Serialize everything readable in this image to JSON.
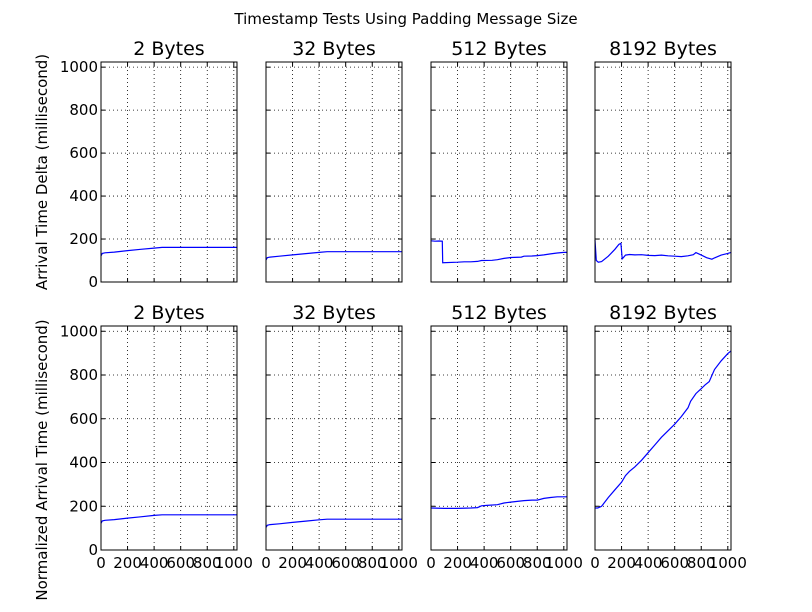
{
  "figure": {
    "title": "Timestamp Tests Using Padding Message Size"
  },
  "chart_data": {
    "type": "line",
    "xlim": [
      0,
      1024
    ],
    "ylim": [
      0,
      1024
    ],
    "x_ticks": [
      0,
      200,
      400,
      600,
      800,
      1000
    ],
    "y_ticks": [
      0,
      200,
      400,
      600,
      800,
      1000
    ],
    "grid": true,
    "series_color": "#0000ff",
    "rows": [
      {
        "ylabel": "Arrival Time Delta (millisecond)",
        "panels": [
          {
            "title": "2 Bytes",
            "x": [
              0,
              10,
              30,
              100,
              200,
              300,
              400,
              460,
              500,
              700,
              1024
            ],
            "y": [
              122,
              133,
              136,
              139,
              146,
              152,
              158,
              161,
              161,
              161,
              161
            ]
          },
          {
            "title": "32 Bytes",
            "x": [
              0,
              10,
              30,
              100,
              200,
              300,
              400,
              460,
              500,
              700,
              1024
            ],
            "y": [
              103,
              113,
              116,
              120,
              126,
              132,
              138,
              141,
              141,
              141,
              141
            ]
          },
          {
            "title": "512 Bytes",
            "x": [
              0,
              30,
              60,
              85,
              88,
              200,
              250,
              300,
              350,
              380,
              460,
              500,
              550,
              600,
              680,
              700,
              760,
              800,
              850,
              900,
              950,
              1000,
              1024
            ],
            "y": [
              192,
              190,
              191,
              190,
              90,
              92,
              94,
              94,
              96,
              100,
              101,
              104,
              110,
              114,
              116,
              120,
              121,
              123,
              126,
              131,
              135,
              138,
              138
            ]
          },
          {
            "title": "8192 Bytes",
            "x": [
              0,
              10,
              25,
              50,
              100,
              150,
              180,
              195,
              205,
              215,
              230,
              260,
              300,
              350,
              400,
              450,
              500,
              550,
              600,
              650,
              700,
              740,
              760,
              800,
              840,
              880,
              900,
              950,
              1000,
              1024
            ],
            "y": [
              195,
              100,
              92,
              95,
              120,
              152,
              175,
              180,
              108,
              115,
              125,
              128,
              126,
              127,
              124,
              123,
              125,
              122,
              120,
              118,
              122,
              127,
              137,
              125,
              113,
              106,
              112,
              125,
              133,
              138
            ]
          }
        ]
      },
      {
        "ylabel": "Normalized Arrival Time (millisecond)",
        "panels": [
          {
            "title": "2 Bytes",
            "x": [
              0,
              10,
              30,
              100,
              200,
              300,
              400,
              460,
              500,
              700,
              1024
            ],
            "y": [
              122,
              133,
              136,
              139,
              146,
              152,
              158,
              161,
              161,
              161,
              161
            ]
          },
          {
            "title": "32 Bytes",
            "x": [
              0,
              10,
              30,
              100,
              200,
              300,
              400,
              460,
              500,
              700,
              1024
            ],
            "y": [
              103,
              113,
              116,
              120,
              126,
              132,
              138,
              141,
              141,
              141,
              141
            ]
          },
          {
            "title": "512 Bytes",
            "x": [
              0,
              100,
              200,
              300,
              350,
              380,
              420,
              500,
              550,
              600,
              650,
              700,
              760,
              800,
              850,
              900,
              950,
              1024
            ],
            "y": [
              192,
              190,
              190,
              192,
              194,
              202,
              204,
              207,
              215,
              219,
              222,
              226,
              228,
              228,
              236,
              240,
              243,
              243
            ]
          },
          {
            "title": "8192 Bytes",
            "x": [
              0,
              20,
              50,
              100,
              150,
              200,
              230,
              260,
              300,
              350,
              400,
              450,
              500,
              550,
              600,
              650,
              700,
              720,
              760,
              800,
              830,
              860,
              900,
              950,
              1000,
              1024
            ],
            "y": [
              192,
              192,
              200,
              240,
              275,
              310,
              340,
              360,
              380,
              410,
              445,
              480,
              515,
              545,
              575,
              610,
              650,
              680,
              715,
              738,
              755,
              770,
              825,
              865,
              898,
              910
            ]
          }
        ]
      }
    ]
  }
}
